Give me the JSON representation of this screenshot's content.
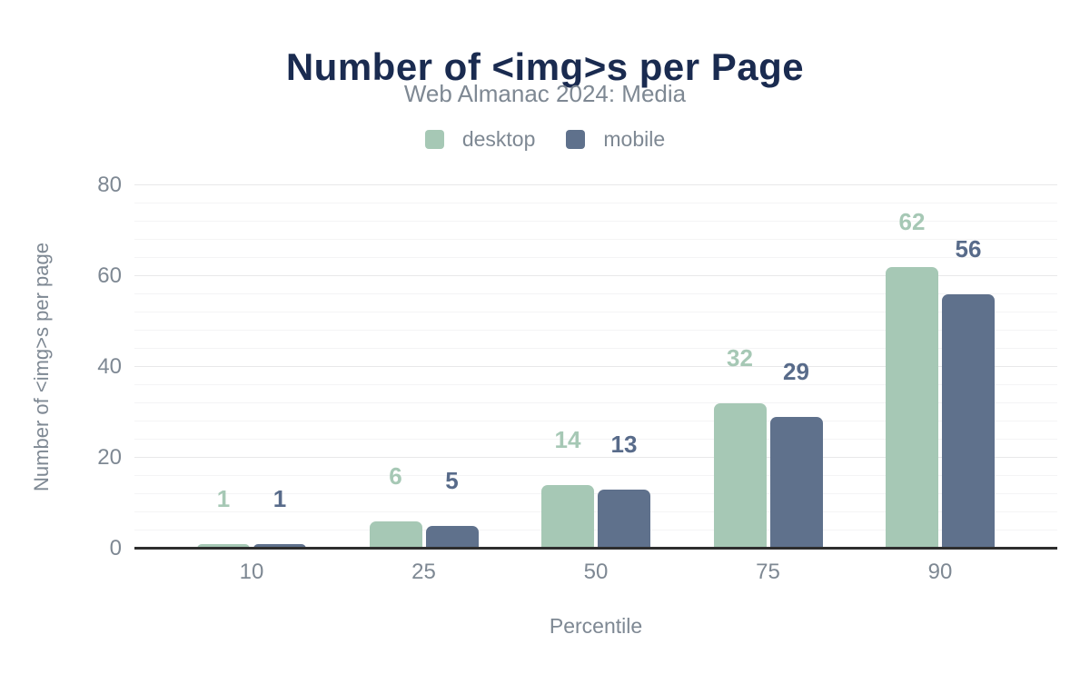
{
  "chart_data": {
    "type": "bar",
    "title": "Number of <img>s per Page",
    "subtitle": "Web Almanac 2024: Media",
    "xlabel": "Percentile",
    "ylabel": "Number of <img>s per page",
    "categories": [
      "10",
      "25",
      "50",
      "75",
      "90"
    ],
    "series": [
      {
        "name": "desktop",
        "color": "#a6c8b5",
        "label_color": "#a6c8b5",
        "values": [
          1,
          6,
          14,
          32,
          62
        ]
      },
      {
        "name": "mobile",
        "color": "#5f718c",
        "label_color": "#586b8a",
        "values": [
          1,
          5,
          13,
          29,
          56
        ]
      }
    ],
    "ylim": [
      0,
      80
    ],
    "yticks": [
      0,
      20,
      40,
      60,
      80
    ],
    "minor_grid_step": 4,
    "legend_position": "top",
    "grid": "horizontal major+minor"
  },
  "colors": {
    "title": "#1a2b50",
    "muted_text": "#7e8893",
    "axis_line": "#2e2e2e",
    "grid_major": "#e8e8e9",
    "grid_minor": "#f4f4f5",
    "background": "#ffffff"
  }
}
